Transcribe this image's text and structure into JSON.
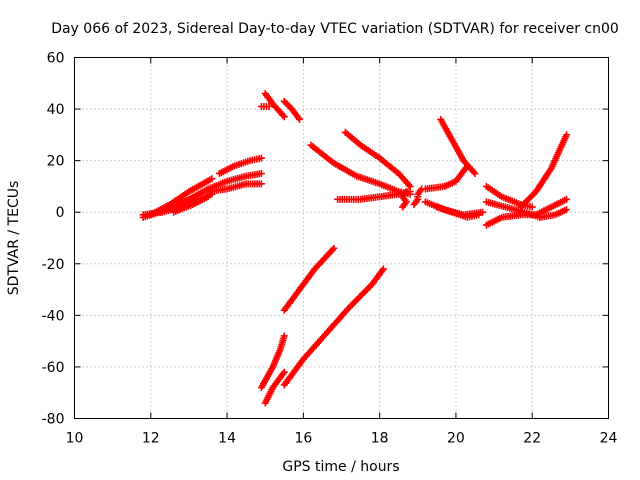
{
  "chart_data": {
    "type": "scatter",
    "title": "Day 066 of 2023, Sidereal Day-to-day VTEC variation (SDTVAR) for receiver cn00",
    "xlabel": "GPS time / hours",
    "ylabel": "SDTVAR / TECUs",
    "xlim": [
      10,
      24
    ],
    "ylim": [
      -80,
      60
    ],
    "xticks": [
      10,
      12,
      14,
      16,
      18,
      20,
      22,
      24
    ],
    "yticks": [
      -80,
      -60,
      -40,
      -20,
      0,
      20,
      40,
      60
    ],
    "grid": true,
    "marker": "plus",
    "color": "#ff0000",
    "series": [
      {
        "x": [
          11.8,
          12.3,
          12.8,
          13.3,
          13.6
        ],
        "y": [
          -1,
          0,
          2,
          5,
          7
        ]
      },
      {
        "x": [
          11.8,
          12.4,
          13.0,
          13.5,
          14.0,
          14.5,
          14.9
        ],
        "y": [
          -2,
          1,
          5,
          9,
          12,
          14,
          15
        ]
      },
      {
        "x": [
          12.0,
          12.5,
          13.0,
          13.6
        ],
        "y": [
          -1,
          3,
          8,
          13
        ]
      },
      {
        "x": [
          13.5,
          14.0,
          14.5,
          14.9
        ],
        "y": [
          8,
          9,
          11,
          11
        ]
      },
      {
        "x": [
          13.8,
          14.2,
          14.6,
          14.9
        ],
        "y": [
          15,
          18,
          20,
          21
        ]
      },
      {
        "x": [
          12.6,
          13.1,
          13.5
        ],
        "y": [
          0,
          3,
          6
        ]
      },
      {
        "x": [
          14.9,
          15.1
        ],
        "y": [
          41,
          41
        ]
      },
      {
        "x": [
          15.0,
          15.2,
          15.5
        ],
        "y": [
          46,
          42,
          37
        ]
      },
      {
        "x": [
          15.5,
          15.7,
          15.9
        ],
        "y": [
          43,
          40,
          36
        ]
      },
      {
        "x": [
          16.2,
          16.8,
          17.4,
          18.0,
          18.5,
          18.8
        ],
        "y": [
          26,
          19,
          14,
          11,
          8,
          7
        ]
      },
      {
        "x": [
          17.1,
          17.5,
          18.0,
          18.5,
          18.8
        ],
        "y": [
          31,
          26,
          21,
          15,
          10
        ]
      },
      {
        "x": [
          16.9,
          17.5,
          18.0,
          18.5,
          18.8
        ],
        "y": [
          5,
          5,
          6,
          7,
          8
        ]
      },
      {
        "x": [
          18.6,
          18.7,
          18.6,
          18.7
        ],
        "y": [
          2,
          4,
          6,
          8
        ]
      },
      {
        "x": [
          18.9,
          19.0,
          19.0,
          19.1
        ],
        "y": [
          3,
          5,
          7,
          9
        ]
      },
      {
        "x": [
          19.2,
          19.7,
          20.0,
          20.3
        ],
        "y": [
          9,
          10,
          12,
          18
        ]
      },
      {
        "x": [
          19.2,
          19.7,
          20.2,
          20.7
        ],
        "y": [
          4,
          1,
          -1,
          0
        ]
      },
      {
        "x": [
          19.6,
          19.9,
          20.2,
          20.5
        ],
        "y": [
          36,
          28,
          20,
          15
        ]
      },
      {
        "x": [
          19.5,
          19.9,
          20.3,
          20.6
        ],
        "y": [
          2,
          0,
          -2,
          -1
        ]
      },
      {
        "x": [
          20.8,
          21.2,
          21.7,
          22.0
        ],
        "y": [
          10,
          6,
          3,
          2
        ]
      },
      {
        "x": [
          20.8,
          21.2,
          21.7,
          22.1
        ],
        "y": [
          -5,
          -2,
          -1,
          -1
        ]
      },
      {
        "x": [
          20.8,
          21.3,
          21.8,
          22.2
        ],
        "y": [
          4,
          2,
          0,
          -2
        ]
      },
      {
        "x": [
          21.7,
          22.1,
          22.5,
          22.9
        ],
        "y": [
          2,
          8,
          17,
          30
        ]
      },
      {
        "x": [
          22.1,
          22.5,
          22.9
        ],
        "y": [
          -1,
          2,
          5
        ]
      },
      {
        "x": [
          22.2,
          22.6,
          22.9
        ],
        "y": [
          -2,
          -1,
          1
        ]
      },
      {
        "x": [
          15.5,
          15.9,
          16.3,
          16.8
        ],
        "y": [
          -38,
          -30,
          -22,
          -14
        ]
      },
      {
        "x": [
          15.5,
          16.0,
          16.6,
          17.2,
          17.8,
          18.1
        ],
        "y": [
          -67,
          -57,
          -47,
          -37,
          -28,
          -22
        ]
      },
      {
        "x": [
          14.9,
          15.2,
          15.4,
          15.5
        ],
        "y": [
          -68,
          -60,
          -53,
          -48
        ]
      },
      {
        "x": [
          15.0,
          15.2,
          15.5
        ],
        "y": [
          -74,
          -68,
          -62
        ]
      }
    ]
  }
}
